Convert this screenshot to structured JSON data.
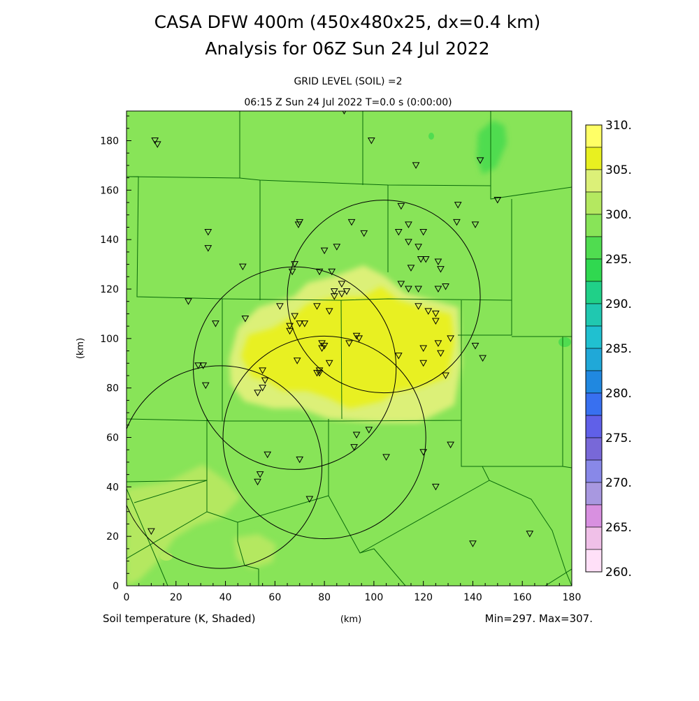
{
  "header": {
    "title": "CASA DFW 400m (450x480x25, dx=0.4 km)",
    "subtitle": "Analysis for 06Z Sun 24 Jul 2022",
    "level": "GRID LEVEL (SOIL) =2",
    "time": "06:15 Z Sun 24 Jul 2022   T=0.0 s (0:00:00)"
  },
  "footer": {
    "field": "Soil temperature (K, Shaded)",
    "xunit": "(km)",
    "range": "Min=297. Max=307."
  },
  "chart_data": {
    "type": "heatmap",
    "xlabel": "(km)",
    "ylabel": "(km)",
    "xlim": [
      0,
      180
    ],
    "ylim": [
      0,
      192
    ],
    "x_ticks": [
      0,
      20,
      40,
      60,
      80,
      100,
      120,
      140,
      160,
      180
    ],
    "y_ticks": [
      0,
      20,
      40,
      60,
      80,
      100,
      120,
      140,
      160,
      180
    ],
    "colorbar": {
      "labels": [
        "310.",
        "305.",
        "305.",
        "300.",
        "300.",
        "295.",
        "295.",
        "290.",
        "290.",
        "285.",
        "285.",
        "280.",
        "280.",
        "275.",
        "275.",
        "270.",
        "270.",
        "265.",
        "265.",
        "260."
      ],
      "colors": [
        "#ffff66",
        "#e8f020",
        "#dcf078",
        "#b4e860",
        "#88e458",
        "#50dc50",
        "#30d850",
        "#20d088",
        "#20c8b0",
        "#20c0d0",
        "#20a8d8",
        "#2088e0",
        "#3870f0",
        "#6060e8",
        "#7868d8",
        "#8888e8",
        "#a898e0",
        "#d890e0",
        "#f0c0e8",
        "#ffe0f8"
      ]
    },
    "radar_circles": [
      {
        "cx": 104,
        "cy": 117,
        "r": 39
      },
      {
        "cx": 68,
        "cy": 88,
        "r": 41
      },
      {
        "cx": 80,
        "cy": 60,
        "r": 41
      },
      {
        "cx": 38,
        "cy": 48,
        "r": 41
      }
    ],
    "stations": [
      [
        11.5,
        180
      ],
      [
        12.5,
        178.5
      ],
      [
        88,
        192
      ],
      [
        99,
        180
      ],
      [
        117,
        170
      ],
      [
        143,
        172
      ],
      [
        150,
        156
      ],
      [
        33,
        143
      ],
      [
        33,
        136.5
      ],
      [
        70,
        147
      ],
      [
        69.5,
        146
      ],
      [
        47,
        129
      ],
      [
        68,
        130
      ],
      [
        67,
        127
      ],
      [
        78,
        127
      ],
      [
        80,
        135.5
      ],
      [
        83,
        127
      ],
      [
        85,
        137
      ],
      [
        91,
        147
      ],
      [
        96,
        142.5
      ],
      [
        134,
        154
      ],
      [
        133.5,
        147
      ],
      [
        141,
        146
      ],
      [
        111,
        153.5
      ],
      [
        114,
        146
      ],
      [
        110,
        143
      ],
      [
        118,
        137
      ],
      [
        120,
        143
      ],
      [
        114,
        139
      ],
      [
        121,
        132
      ],
      [
        119,
        132
      ],
      [
        126,
        131
      ],
      [
        127,
        128
      ],
      [
        115,
        128.5
      ],
      [
        111,
        122
      ],
      [
        114,
        120
      ],
      [
        118,
        120
      ],
      [
        126,
        120
      ],
      [
        129,
        121
      ],
      [
        87,
        122
      ],
      [
        87,
        118
      ],
      [
        89,
        119
      ],
      [
        84,
        119
      ],
      [
        84,
        117
      ],
      [
        25,
        115
      ],
      [
        36,
        106
      ],
      [
        48,
        108
      ],
      [
        62,
        113
      ],
      [
        68,
        109
      ],
      [
        77,
        113
      ],
      [
        82,
        111
      ],
      [
        66,
        105
      ],
      [
        66,
        103
      ],
      [
        70,
        106
      ],
      [
        72,
        106
      ],
      [
        93,
        101
      ],
      [
        94,
        100
      ],
      [
        79,
        98
      ],
      [
        80,
        97
      ],
      [
        79,
        96
      ],
      [
        90,
        98
      ],
      [
        118,
        113
      ],
      [
        122,
        111
      ],
      [
        125,
        110
      ],
      [
        125,
        107
      ],
      [
        120,
        96
      ],
      [
        126,
        98
      ],
      [
        127,
        94
      ],
      [
        131,
        100
      ],
      [
        141,
        97
      ],
      [
        144,
        92
      ],
      [
        110,
        93
      ],
      [
        120,
        90
      ],
      [
        129,
        85
      ],
      [
        29,
        89
      ],
      [
        31,
        89
      ],
      [
        32,
        81
      ],
      [
        69,
        91
      ],
      [
        82,
        90
      ],
      [
        78,
        87
      ],
      [
        77,
        86
      ],
      [
        78,
        86
      ],
      [
        55,
        87
      ],
      [
        56,
        83
      ],
      [
        53,
        78
      ],
      [
        55,
        80
      ],
      [
        93,
        61
      ],
      [
        98,
        63
      ],
      [
        92,
        56
      ],
      [
        105,
        52
      ],
      [
        120,
        54
      ],
      [
        131,
        57
      ],
      [
        125,
        40
      ],
      [
        57,
        53
      ],
      [
        70,
        51
      ],
      [
        54,
        45
      ],
      [
        53,
        42
      ],
      [
        74,
        35
      ],
      [
        10,
        22
      ],
      [
        140,
        17
      ],
      [
        163,
        21
      ]
    ]
  }
}
